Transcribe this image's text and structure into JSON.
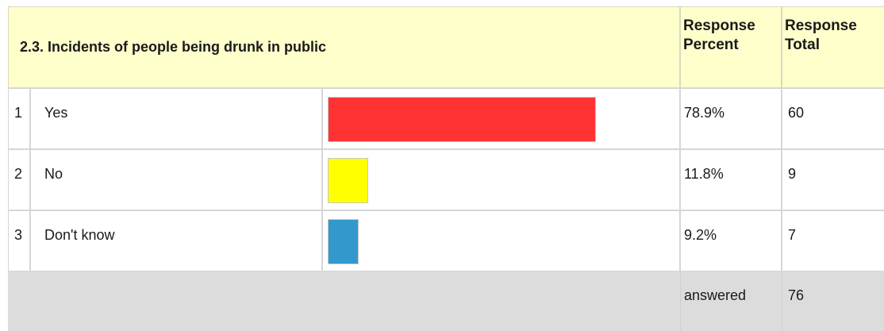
{
  "question": "2.3. Incidents of people being drunk in public",
  "headers": {
    "percent": "Response Percent",
    "total": "Response Total"
  },
  "chart_data": {
    "type": "bar",
    "categories": [
      "Yes",
      "No",
      "Don't know"
    ],
    "values": [
      78.9,
      11.8,
      9.2
    ],
    "percent_labels": [
      "78.9%",
      "11.8%",
      "9.2%"
    ],
    "totals": [
      "60",
      "9",
      "7"
    ],
    "row_numbers": [
      "1",
      "2",
      "3"
    ],
    "colors": [
      "#ff3333",
      "#ffff00",
      "#3399cc"
    ],
    "xlim": [
      0,
      100
    ]
  },
  "footer": {
    "label": "answered",
    "value": "76"
  }
}
